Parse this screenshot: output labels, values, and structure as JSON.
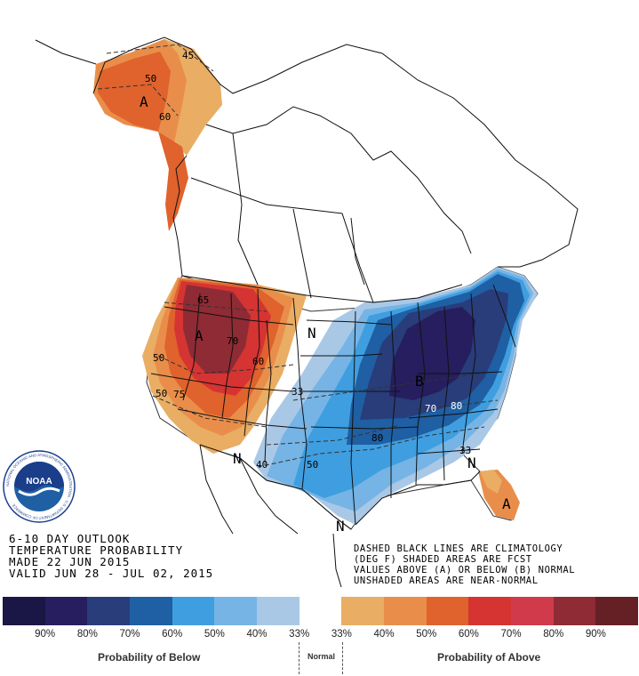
{
  "map": {
    "letters": {
      "a_alaska": "A",
      "a_west": "A",
      "a_florida": "A",
      "b_east": "B",
      "n_plains": "N",
      "n_arizona": "N",
      "n_texas": "N",
      "n_georgia": "N"
    },
    "contours": {
      "c45": "45",
      "c50_ak": "50",
      "c60_ak": "60",
      "c65": "65",
      "c70_w": "70",
      "c60_w": "60",
      "c50_w1": "50",
      "c50_w2": "50",
      "c75": "75",
      "c33_mid": "33",
      "c40_sw": "40",
      "c50_s": "50",
      "c70_e": "70",
      "c80_e": "80",
      "c80_se": "80",
      "c33_se": "33"
    }
  },
  "logo": {
    "text": "NOAA",
    "ring": "NATIONAL OCEANIC AND ATMOSPHERIC ADMINISTRATION · U.S. DEPARTMENT OF COMMERCE ·"
  },
  "outlook": {
    "line1": "6-10 DAY OUTLOOK",
    "line2": "TEMPERATURE PROBABILITY",
    "line3": "MADE  22 JUN 2015",
    "line4": "VALID  JUN 28 - JUL 02, 2015"
  },
  "note": {
    "line1": "DASHED BLACK LINES ARE CLIMATOLOGY",
    "line2": "(DEG F) SHADED AREAS ARE FCST",
    "line3": "VALUES ABOVE (A) OR BELOW (B) NORMAL",
    "line4": "UNSHADED AREAS ARE NEAR-NORMAL"
  },
  "legend": {
    "colors": [
      "#1a1645",
      "#261e5e",
      "#283d7a",
      "#1f5fa3",
      "#3f9ee0",
      "#75b4e5",
      "#a9c8e6",
      "#ffffff",
      "#e9ad64",
      "#e98e4a",
      "#e0622d",
      "#d53433",
      "#d03a4a",
      "#8e2b34",
      "#652026"
    ],
    "labels": [
      "90%",
      "80%",
      "70%",
      "60%",
      "50%",
      "40%",
      "33%",
      "33%",
      "40%",
      "50%",
      "60%",
      "70%",
      "80%",
      "90%"
    ],
    "below_label": "Probability of Below",
    "normal_label": "Normal",
    "above_label": "Probability of Above"
  }
}
